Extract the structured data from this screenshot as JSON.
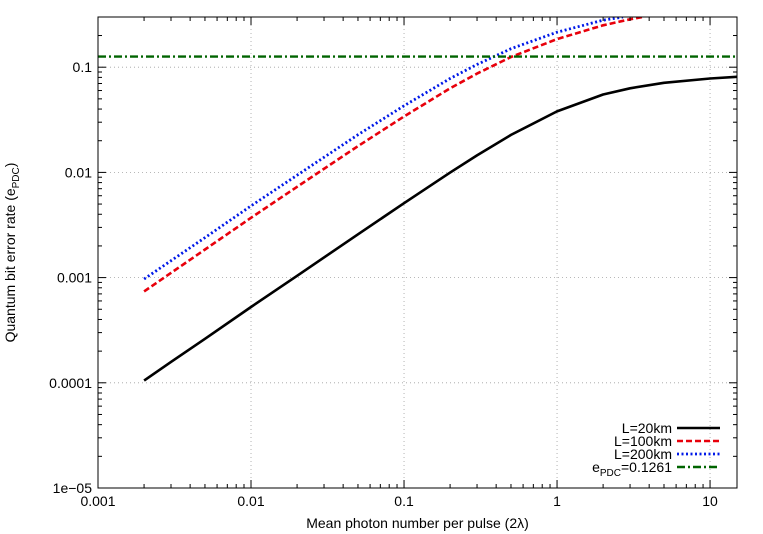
{
  "chart_data": {
    "type": "line",
    "title": "",
    "xlabel": "Mean photon number per pulse (2λ)",
    "ylabel": {
      "main": "Quantum bit error rate (e",
      "sub": "PDC",
      "close": ")"
    },
    "xscale": "log",
    "yscale": "log",
    "xlim": [
      0.001,
      15
    ],
    "ylim": [
      1e-05,
      0.3
    ],
    "grid": true,
    "legend_position": "bottom-right",
    "xticks": [
      {
        "value": 0.001,
        "label": "0.001"
      },
      {
        "value": 0.01,
        "label": "0.01"
      },
      {
        "value": 0.1,
        "label": "0.1"
      },
      {
        "value": 1,
        "label": "1"
      },
      {
        "value": 10,
        "label": "10"
      }
    ],
    "yticks": [
      {
        "value": 1e-05,
        "label": "1e−05"
      },
      {
        "value": 0.0001,
        "label": "0.0001"
      },
      {
        "value": 0.001,
        "label": "0.001"
      },
      {
        "value": 0.01,
        "label": "0.01"
      },
      {
        "value": 0.1,
        "label": "0.1"
      }
    ],
    "series": [
      {
        "name": "L=20km",
        "color": "#000000",
        "dash": "solid",
        "x": [
          0.002,
          0.003,
          0.005,
          0.01,
          0.02,
          0.05,
          0.1,
          0.2,
          0.3,
          0.5,
          1,
          2,
          3,
          5,
          10,
          15
        ],
        "y": [
          0.000105,
          0.000158,
          0.000262,
          0.000525,
          0.00104,
          0.00258,
          0.0051,
          0.00995,
          0.0145,
          0.0227,
          0.038,
          0.055,
          0.063,
          0.071,
          0.078,
          0.081
        ]
      },
      {
        "name": "L=100km",
        "color": "#e8000b",
        "dash": "dashed",
        "x": [
          0.002,
          0.005,
          0.01,
          0.02,
          0.05,
          0.1,
          0.2,
          0.3,
          0.5,
          1,
          2,
          3,
          3.6
        ],
        "y": [
          0.00074,
          0.00185,
          0.0037,
          0.0073,
          0.0178,
          0.034,
          0.063,
          0.087,
          0.125,
          0.185,
          0.25,
          0.285,
          0.3
        ]
      },
      {
        "name": "L=200km",
        "color": "#0019e8",
        "dash": "dotted",
        "x": [
          0.002,
          0.005,
          0.01,
          0.02,
          0.05,
          0.1,
          0.2,
          0.3,
          0.5,
          1,
          2,
          2.7
        ],
        "y": [
          0.00097,
          0.0024,
          0.0048,
          0.0094,
          0.0228,
          0.043,
          0.078,
          0.106,
          0.15,
          0.215,
          0.28,
          0.3
        ]
      },
      {
        "name": "e_PDC=0.1261",
        "legend_main": "e",
        "legend_sub": "PDC",
        "legend_tail": "=0.1261",
        "color": "#006400",
        "dash": "dashdot",
        "x": [
          0.001,
          15
        ],
        "y": [
          0.1261,
          0.1261
        ]
      }
    ]
  }
}
